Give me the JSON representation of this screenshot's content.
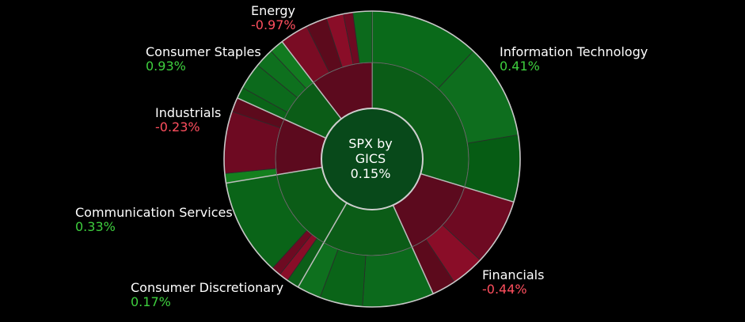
{
  "chart_data": {
    "type": "sunburst",
    "center": {
      "line1": "SPX by",
      "line2": "GICS",
      "value": "0.15%"
    },
    "colors": {
      "positive_text": "#3ecf3e",
      "negative_text": "#ff4f5e"
    },
    "sectors": [
      {
        "name": "Information Technology",
        "change": "0.41%",
        "sign": "pos",
        "weight": 28.5,
        "children": [
          {
            "w": 11.5,
            "c": "#0a6a1a"
          },
          {
            "w": 10.0,
            "c": "#0e6e1e"
          },
          {
            "w": 7.0,
            "c": "#065c14"
          }
        ]
      },
      {
        "name": "Financials",
        "change": "-0.44%",
        "sign": "neg",
        "weight": 13,
        "children": [
          {
            "w": 7.0,
            "c": "#6e0a22"
          },
          {
            "w": 3.5,
            "c": "#8a0d28"
          },
          {
            "w": 2.5,
            "c": "#5c0a1c"
          }
        ]
      },
      {
        "name": "Consumer Discretionary",
        "change": "0.17%",
        "sign": "pos",
        "weight": 14.5,
        "children": [
          {
            "w": 7.5,
            "c": "#0c6a1c"
          },
          {
            "w": 4.5,
            "c": "#0a6418"
          },
          {
            "w": 2.5,
            "c": "#0e701e"
          }
        ]
      },
      {
        "name": "Communication Services",
        "change": "0.33%",
        "sign": "pos",
        "weight": 13.5,
        "children": [
          {
            "w": 1.3,
            "c": "#0c5e18"
          },
          {
            "w": 1.0,
            "c": "#8a0d28"
          },
          {
            "w": 1.0,
            "c": "#6e0a22"
          },
          {
            "w": 10.2,
            "c": "#0a6418"
          }
        ]
      },
      {
        "name": "Industrials",
        "change": "-0.23%",
        "sign": "neg",
        "weight": 9,
        "children": [
          {
            "w": 1.0,
            "c": "#14801e"
          },
          {
            "w": 6.5,
            "c": "#6e0a22"
          },
          {
            "w": 1.5,
            "c": "#5c0a1c"
          }
        ]
      },
      {
        "name": "Consumer Staples",
        "change": "0.93%",
        "sign": "pos",
        "weight": 7.5,
        "children": [
          {
            "w": 1.2,
            "c": "#0a6418"
          },
          {
            "w": 2.8,
            "c": "#0c6a1c"
          },
          {
            "w": 2.0,
            "c": "#0e701e"
          },
          {
            "w": 1.5,
            "c": "#127a20"
          }
        ]
      },
      {
        "name": "Energy",
        "change": "-0.97%",
        "sign": "neg",
        "weight": 10,
        "children": [
          {
            "w": 3.0,
            "c": "#7a0c24"
          },
          {
            "w": 2.2,
            "c": "#5c0a1c"
          },
          {
            "w": 1.8,
            "c": "#8a0d28"
          },
          {
            "w": 1.0,
            "c": "#6e0a22"
          },
          {
            "w": 2.0,
            "c": "#0c6a1c"
          }
        ]
      }
    ]
  }
}
